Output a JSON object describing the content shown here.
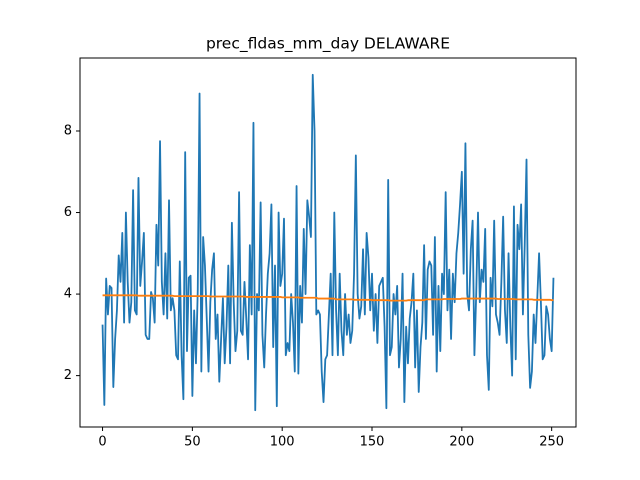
{
  "chart_data": {
    "type": "line",
    "title": "prec_fldas_mm_day DELAWARE",
    "x": [
      0,
      1,
      2,
      3,
      4,
      5,
      6,
      7,
      8,
      9,
      10,
      11,
      12,
      13,
      14,
      15,
      16,
      17,
      18,
      19,
      20,
      21,
      22,
      23,
      24,
      25,
      26,
      27,
      28,
      29,
      30,
      31,
      32,
      33,
      34,
      35,
      36,
      37,
      38,
      39,
      40,
      41,
      42,
      43,
      44,
      45,
      46,
      47,
      48,
      49,
      50,
      51,
      52,
      53,
      54,
      55,
      56,
      57,
      58,
      59,
      60,
      61,
      62,
      63,
      64,
      65,
      66,
      67,
      68,
      69,
      70,
      71,
      72,
      73,
      74,
      75,
      76,
      77,
      78,
      79,
      80,
      81,
      82,
      83,
      84,
      85,
      86,
      87,
      88,
      89,
      90,
      91,
      92,
      93,
      94,
      95,
      96,
      97,
      98,
      99,
      100,
      101,
      102,
      103,
      104,
      105,
      106,
      107,
      108,
      109,
      110,
      111,
      112,
      113,
      114,
      115,
      116,
      117,
      118,
      119,
      120,
      121,
      122,
      123,
      124,
      125,
      126,
      127,
      128,
      129,
      130,
      131,
      132,
      133,
      134,
      135,
      136,
      137,
      138,
      139,
      140,
      141,
      142,
      143,
      144,
      145,
      146,
      147,
      148,
      149,
      150,
      151,
      152,
      153,
      154,
      155,
      156,
      157,
      158,
      159,
      160,
      161,
      162,
      163,
      164,
      165,
      166,
      167,
      168,
      169,
      170,
      171,
      172,
      173,
      174,
      175,
      176,
      177,
      178,
      179,
      180,
      181,
      182,
      183,
      184,
      185,
      186,
      187,
      188,
      189,
      190,
      191,
      192,
      193,
      194,
      195,
      196,
      197,
      198,
      199,
      200,
      201,
      202,
      203,
      204,
      205,
      206,
      207,
      208,
      209,
      210,
      211,
      212,
      213,
      214,
      215,
      216,
      217,
      218,
      219,
      220,
      221,
      222,
      223,
      224,
      225,
      226,
      227,
      228,
      229,
      230,
      231,
      232,
      233,
      234,
      235,
      236,
      237,
      238,
      239,
      240,
      241,
      242,
      243,
      244,
      245,
      246,
      247,
      248,
      249,
      250,
      251
    ],
    "series": [
      {
        "color": "#1f77b4",
        "values": [
          3.25,
          1.28,
          4.38,
          3.5,
          4.2,
          4.15,
          1.72,
          2.9,
          3.6,
          4.95,
          4.3,
          5.5,
          3.3,
          6.0,
          4.3,
          3.3,
          3.8,
          6.55,
          3.6,
          3.5,
          6.85,
          4.2,
          4.8,
          5.5,
          3.0,
          2.9,
          2.9,
          4.05,
          3.9,
          3.3,
          5.7,
          4.7,
          7.75,
          4.3,
          3.5,
          5.0,
          3.4,
          6.3,
          3.6,
          3.9,
          3.6,
          2.5,
          2.4,
          4.8,
          2.5,
          1.42,
          7.48,
          2.6,
          4.4,
          4.45,
          1.5,
          3.6,
          2.3,
          4.1,
          8.92,
          2.1,
          5.4,
          4.7,
          3.4,
          2.1,
          3.8,
          4.6,
          5.0,
          2.9,
          3.5,
          1.85,
          2.9,
          3.9,
          2.3,
          3.2,
          4.7,
          2.3,
          5.75,
          3.8,
          2.6,
          3.1,
          6.5,
          3.1,
          3.0,
          4.3,
          3.4,
          2.4,
          5.2,
          3.5,
          8.2,
          1.15,
          4.0,
          3.6,
          6.25,
          3.0,
          2.2,
          3.5,
          4.5,
          5.0,
          6.2,
          2.7,
          4.7,
          1.25,
          6.0,
          4.2,
          4.5,
          5.85,
          2.5,
          2.8,
          2.6,
          4.0,
          3.3,
          2.1,
          6.65,
          2.05,
          4.2,
          3.3,
          5.6,
          4.0,
          6.3,
          5.9,
          5.4,
          9.38,
          8.0,
          3.5,
          3.6,
          3.5,
          2.1,
          1.35,
          2.4,
          2.5,
          3.5,
          4.5,
          2.5,
          6.0,
          3.6,
          2.5,
          4.5,
          3.1,
          2.5,
          4.0,
          3.0,
          3.5,
          2.8,
          3.1,
          4.5,
          7.4,
          4.0,
          3.4,
          3.7,
          5.1,
          3.5,
          5.5,
          4.9,
          3.6,
          4.5,
          3.1,
          4.0,
          2.8,
          4.2,
          4.3,
          4.4,
          3.2,
          1.2,
          6.8,
          2.5,
          2.7,
          4.0,
          3.5,
          4.2,
          2.2,
          2.9,
          4.5,
          1.35,
          3.2,
          2.3,
          3.4,
          3.8,
          4.5,
          2.2,
          3.6,
          1.6,
          2.7,
          3.3,
          5.2,
          2.9,
          4.6,
          4.8,
          4.7,
          3.0,
          5.4,
          2.1,
          4.2,
          2.6,
          4.5,
          4.0,
          6.5,
          3.6,
          4.6,
          2.9,
          4.5,
          3.8,
          5.0,
          5.5,
          6.2,
          7.0,
          4.5,
          7.7,
          4.0,
          3.6,
          5.1,
          5.8,
          2.5,
          4.0,
          6.0,
          3.8,
          4.6,
          4.3,
          5.6,
          2.5,
          1.65,
          4.4,
          3.7,
          5.8,
          3.5,
          3.3,
          3.0,
          4.3,
          5.9,
          3.6,
          2.8,
          5.0,
          3.2,
          2.0,
          6.15,
          2.4,
          5.7,
          5.1,
          6.2,
          3.5,
          5.2,
          7.3,
          3.0,
          1.7,
          2.1,
          3.5,
          2.8,
          3.9,
          5.0,
          3.8,
          2.4,
          2.5,
          3.7,
          3.5,
          2.9,
          2.6,
          4.4
        ]
      },
      {
        "color": "#ff7f0e",
        "values": [
          3.97,
          3.97,
          3.97,
          3.97,
          3.97,
          3.97,
          3.97,
          3.97,
          3.97,
          3.97,
          3.97,
          3.97,
          3.97,
          3.97,
          3.97,
          3.97,
          3.97,
          3.97,
          3.97,
          3.97,
          3.96,
          3.96,
          3.96,
          3.96,
          3.96,
          3.96,
          3.96,
          3.96,
          3.96,
          3.96,
          3.96,
          3.96,
          3.96,
          3.96,
          3.96,
          3.96,
          3.96,
          3.96,
          3.96,
          3.96,
          3.95,
          3.95,
          3.95,
          3.95,
          3.95,
          3.95,
          3.95,
          3.95,
          3.95,
          3.95,
          3.95,
          3.95,
          3.95,
          3.95,
          3.95,
          3.95,
          3.95,
          3.95,
          3.95,
          3.95,
          3.94,
          3.94,
          3.94,
          3.94,
          3.94,
          3.94,
          3.94,
          3.94,
          3.94,
          3.94,
          3.94,
          3.94,
          3.94,
          3.94,
          3.94,
          3.94,
          3.94,
          3.94,
          3.94,
          3.94,
          3.93,
          3.93,
          3.93,
          3.93,
          3.93,
          3.93,
          3.93,
          3.93,
          3.93,
          3.93,
          3.93,
          3.93,
          3.93,
          3.93,
          3.93,
          3.93,
          3.93,
          3.93,
          3.93,
          3.93,
          3.92,
          3.92,
          3.92,
          3.92,
          3.92,
          3.92,
          3.92,
          3.92,
          3.92,
          3.92,
          3.91,
          3.91,
          3.91,
          3.91,
          3.91,
          3.91,
          3.91,
          3.91,
          3.91,
          3.91,
          3.89,
          3.89,
          3.89,
          3.89,
          3.89,
          3.89,
          3.89,
          3.89,
          3.89,
          3.89,
          3.87,
          3.87,
          3.87,
          3.87,
          3.87,
          3.87,
          3.87,
          3.87,
          3.87,
          3.87,
          3.86,
          3.86,
          3.86,
          3.86,
          3.86,
          3.86,
          3.86,
          3.86,
          3.86,
          3.86,
          3.85,
          3.85,
          3.85,
          3.85,
          3.85,
          3.85,
          3.85,
          3.85,
          3.85,
          3.85,
          3.84,
          3.84,
          3.84,
          3.84,
          3.84,
          3.84,
          3.84,
          3.84,
          3.84,
          3.84,
          3.85,
          3.85,
          3.85,
          3.85,
          3.85,
          3.85,
          3.85,
          3.85,
          3.85,
          3.85,
          3.87,
          3.87,
          3.87,
          3.87,
          3.87,
          3.87,
          3.87,
          3.87,
          3.87,
          3.87,
          3.88,
          3.88,
          3.88,
          3.88,
          3.88,
          3.88,
          3.88,
          3.88,
          3.88,
          3.88,
          3.89,
          3.89,
          3.89,
          3.89,
          3.89,
          3.89,
          3.89,
          3.89,
          3.89,
          3.89,
          3.89,
          3.89,
          3.89,
          3.89,
          3.89,
          3.89,
          3.89,
          3.89,
          3.89,
          3.89,
          3.88,
          3.88,
          3.88,
          3.88,
          3.88,
          3.88,
          3.88,
          3.88,
          3.88,
          3.88,
          3.87,
          3.87,
          3.87,
          3.87,
          3.87,
          3.87,
          3.87,
          3.87,
          3.87,
          3.87,
          3.86,
          3.86,
          3.86,
          3.86,
          3.86,
          3.86,
          3.86,
          3.86,
          3.86,
          3.86,
          3.85,
          3.85
        ]
      }
    ],
    "xlim": [
      -12.55,
      263.55
    ],
    "xticks": [
      0,
      50,
      100,
      150,
      200,
      250
    ],
    "ylim": [
      0.74,
      9.79
    ],
    "yticks": [
      2,
      4,
      6,
      8
    ],
    "grid": false
  }
}
